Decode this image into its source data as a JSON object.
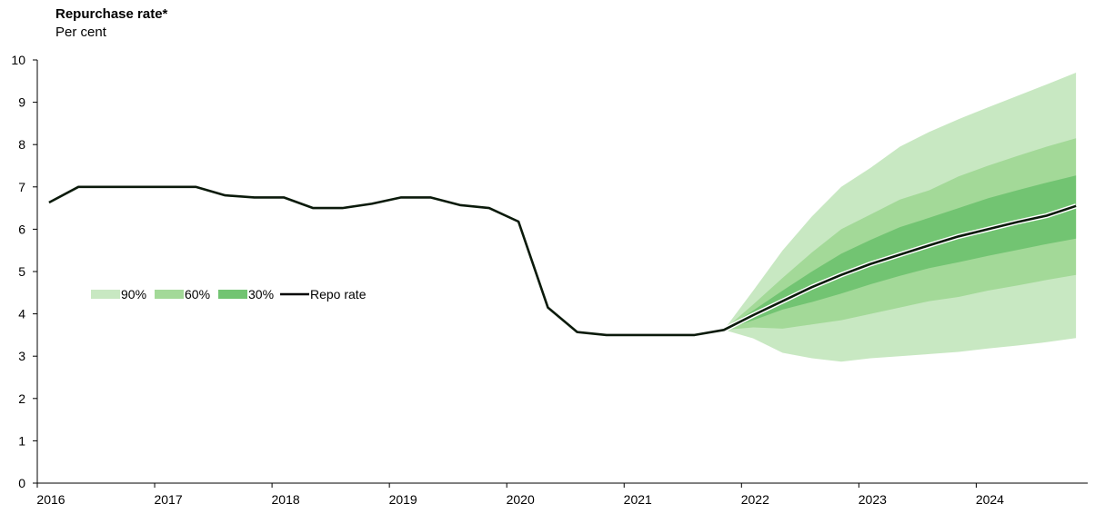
{
  "chart_data": {
    "type": "area",
    "title": "Repurchase rate*",
    "subtitle": "Per cent",
    "xlabel": "",
    "ylabel": "",
    "ylim": [
      0,
      10
    ],
    "yticks": [
      0,
      1,
      2,
      3,
      4,
      5,
      6,
      7,
      8,
      9,
      10
    ],
    "xlim": [
      2016.0,
      2024.95
    ],
    "xticks": [
      2016,
      2017,
      2018,
      2019,
      2020,
      2021,
      2022,
      2023,
      2024
    ],
    "grid": false,
    "legend_position": "middle-left",
    "legend": [
      {
        "label": "90%",
        "color": "#c8e8c2"
      },
      {
        "label": "60%",
        "color": "#a3d998"
      },
      {
        "label": "30%",
        "color": "#72c472"
      },
      {
        "label": "Repo rate",
        "color": "#000000"
      }
    ],
    "repo_rate": {
      "name": "Repo rate",
      "x": [
        2016.1,
        2016.35,
        2016.6,
        2016.85,
        2017.1,
        2017.35,
        2017.6,
        2017.85,
        2018.1,
        2018.35,
        2018.6,
        2018.85,
        2019.1,
        2019.35,
        2019.6,
        2019.85,
        2020.1,
        2020.35,
        2020.6,
        2020.85,
        2021.1,
        2021.35,
        2021.6,
        2021.85,
        2022.1,
        2022.35,
        2022.6,
        2022.85,
        2023.1,
        2023.35,
        2023.6,
        2023.85,
        2024.1,
        2024.35,
        2024.6,
        2024.85
      ],
      "y": [
        6.63,
        7.0,
        7.0,
        7.0,
        7.0,
        7.0,
        6.8,
        6.75,
        6.75,
        6.5,
        6.5,
        6.6,
        6.75,
        6.75,
        6.57,
        6.5,
        6.18,
        4.15,
        3.57,
        3.5,
        3.5,
        3.5,
        3.5,
        3.62,
        3.97,
        4.3,
        4.63,
        4.92,
        5.18,
        5.4,
        5.62,
        5.83,
        6.0,
        6.17,
        6.32,
        6.55
      ]
    },
    "fan": {
      "x": [
        2021.85,
        2022.1,
        2022.35,
        2022.6,
        2022.85,
        2023.1,
        2023.35,
        2023.6,
        2023.85,
        2024.1,
        2024.35,
        2024.6,
        2024.85
      ],
      "band90_upper": [
        3.62,
        4.55,
        5.5,
        6.3,
        7.0,
        7.45,
        7.95,
        8.3,
        8.6,
        8.88,
        9.15,
        9.42,
        9.7
      ],
      "band90_lower": [
        3.62,
        3.42,
        3.08,
        2.95,
        2.87,
        2.95,
        3.0,
        3.05,
        3.1,
        3.18,
        3.25,
        3.33,
        3.43
      ],
      "band60_upper": [
        3.62,
        4.22,
        4.85,
        5.45,
        6.0,
        6.35,
        6.7,
        6.92,
        7.25,
        7.5,
        7.73,
        7.95,
        8.15
      ],
      "band60_lower": [
        3.62,
        3.68,
        3.65,
        3.75,
        3.85,
        4.0,
        4.15,
        4.3,
        4.4,
        4.55,
        4.67,
        4.8,
        4.92
      ],
      "band30_upper": [
        3.62,
        4.08,
        4.55,
        5.0,
        5.42,
        5.75,
        6.05,
        6.27,
        6.5,
        6.73,
        6.92,
        7.1,
        7.27
      ],
      "band30_lower": [
        3.62,
        3.85,
        4.1,
        4.28,
        4.48,
        4.7,
        4.9,
        5.08,
        5.22,
        5.37,
        5.51,
        5.65,
        5.78
      ]
    }
  }
}
